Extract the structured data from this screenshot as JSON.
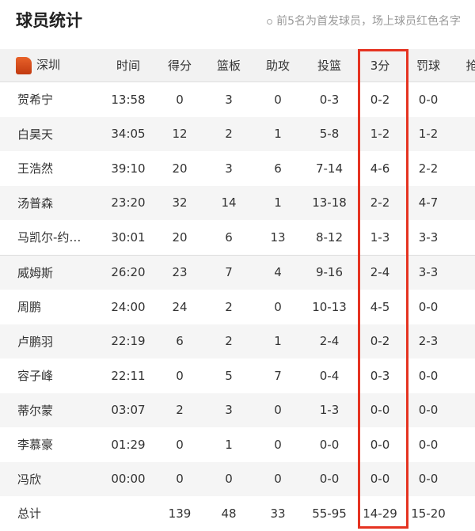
{
  "header": {
    "title": "球员统计",
    "note": "前5名为首发球员，场上球员红色名字"
  },
  "table": {
    "team": "深圳",
    "columns": [
      "时间",
      "得分",
      "篮板",
      "助攻",
      "投篮",
      "3分",
      "罚球",
      "抢"
    ],
    "rows": [
      [
        "贺希宁",
        "13:58",
        "0",
        "3",
        "0",
        "0-3",
        "0-2",
        "0-0"
      ],
      [
        "白昊天",
        "34:05",
        "12",
        "2",
        "1",
        "5-8",
        "1-2",
        "1-2"
      ],
      [
        "王浩然",
        "39:10",
        "20",
        "3",
        "6",
        "7-14",
        "4-6",
        "2-2"
      ],
      [
        "汤普森",
        "23:20",
        "32",
        "14",
        "1",
        "13-18",
        "2-2",
        "4-7"
      ],
      [
        "马凯尔-约…",
        "30:01",
        "20",
        "6",
        "13",
        "8-12",
        "1-3",
        "3-3"
      ],
      [
        "威姆斯",
        "26:20",
        "23",
        "7",
        "4",
        "9-16",
        "2-4",
        "3-3"
      ],
      [
        "周鹏",
        "24:00",
        "24",
        "2",
        "0",
        "10-13",
        "4-5",
        "0-0"
      ],
      [
        "卢鹏羽",
        "22:19",
        "6",
        "2",
        "1",
        "2-4",
        "0-2",
        "2-3"
      ],
      [
        "容子峰",
        "22:11",
        "0",
        "5",
        "7",
        "0-4",
        "0-3",
        "0-0"
      ],
      [
        "蒂尔蒙",
        "03:07",
        "2",
        "3",
        "0",
        "1-3",
        "0-0",
        "0-0"
      ],
      [
        "李慕豪",
        "01:29",
        "0",
        "1",
        "0",
        "0-0",
        "0-0",
        "0-0"
      ],
      [
        "冯欣",
        "00:00",
        "0",
        "0",
        "0",
        "0-0",
        "0-0",
        "0-0"
      ],
      [
        "总计",
        "",
        "139",
        "48",
        "33",
        "55-95",
        "14-29",
        "15-20"
      ]
    ]
  },
  "highlight_color": "#e53321"
}
